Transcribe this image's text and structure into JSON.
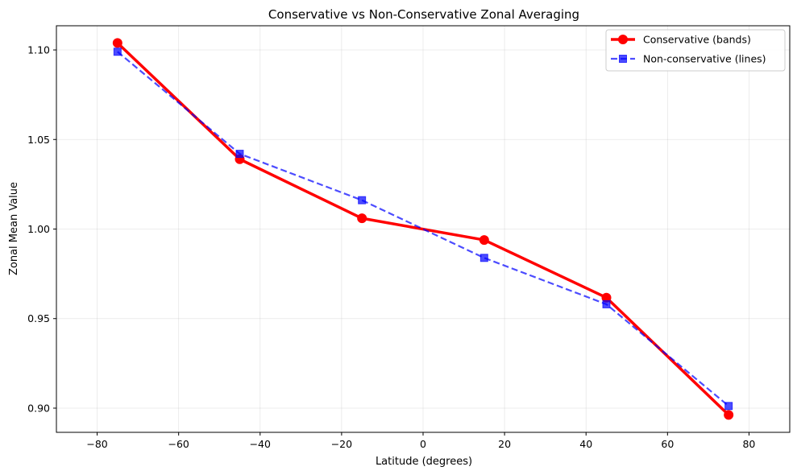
{
  "chart_data": {
    "type": "line",
    "title": "Conservative vs Non-Conservative Zonal Averaging",
    "xlabel": "Latitude (degrees)",
    "ylabel": "Zonal Mean Value",
    "xlim": [
      -90,
      90
    ],
    "ylim": [
      0.8865,
      1.1135
    ],
    "x_ticks": [
      -80,
      -60,
      -40,
      -20,
      0,
      20,
      40,
      60,
      80
    ],
    "x_tick_labels": [
      "−80",
      "−60",
      "−40",
      "−20",
      "0",
      "20",
      "40",
      "60",
      "80"
    ],
    "y_ticks": [
      0.9,
      0.95,
      1.0,
      1.05,
      1.1
    ],
    "y_tick_labels": [
      "0.90",
      "0.95",
      "1.00",
      "1.05",
      "1.10"
    ],
    "grid": true,
    "legend_position": "top-right",
    "series": [
      {
        "name": "Conservative (bands)",
        "color": "#ff0000",
        "line_style": "solid",
        "marker": "circle",
        "x": [
          -75,
          -45,
          -15,
          15,
          45,
          75
        ],
        "y": [
          1.1039,
          1.039,
          1.006,
          0.9939,
          0.9617,
          0.8962
        ]
      },
      {
        "name": "Non-conservative (lines)",
        "color": "#0000ff",
        "line_style": "dashed",
        "marker": "square",
        "x": [
          -75,
          -45,
          -15,
          15,
          45,
          75
        ],
        "y": [
          1.099,
          1.042,
          1.0161,
          0.9839,
          0.958,
          0.9012
        ]
      }
    ]
  }
}
